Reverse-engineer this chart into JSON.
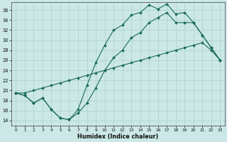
{
  "xlabel": "Humidex (Indice chaleur)",
  "xlim": [
    -0.5,
    23.5
  ],
  "ylim": [
    13,
    37.5
  ],
  "yticks": [
    14,
    16,
    18,
    20,
    22,
    24,
    26,
    28,
    30,
    32,
    34,
    36
  ],
  "xticks": [
    0,
    1,
    2,
    3,
    4,
    5,
    6,
    7,
    8,
    9,
    10,
    11,
    12,
    13,
    14,
    15,
    16,
    17,
    18,
    19,
    20,
    21,
    22,
    23
  ],
  "background_color": "#cbe8e6",
  "grid_color": "#aacfcc",
  "line_color": "#1a6b5a",
  "curve1_x": [
    0,
    1,
    2,
    3,
    4,
    5,
    6,
    7,
    8,
    9,
    10,
    11,
    12,
    13,
    14,
    15,
    16,
    17,
    18,
    19,
    20,
    21,
    22,
    23
  ],
  "curve1_y": [
    19.5,
    19.0,
    17.5,
    18.5,
    16.2,
    14.5,
    14.2,
    16.2,
    21.0,
    25.5,
    29.0,
    32.0,
    33.0,
    35.0,
    35.5,
    37.0,
    36.2,
    37.2,
    35.2,
    35.5,
    33.5,
    31.0,
    28.5,
    26.0
  ],
  "curve2_x": [
    0,
    1,
    2,
    3,
    4,
    5,
    6,
    7,
    8,
    9,
    10,
    11,
    12,
    13,
    14,
    15,
    16,
    17,
    18,
    19,
    20,
    21,
    22,
    23
  ],
  "curve2_y": [
    19.5,
    19.0,
    17.5,
    18.5,
    16.2,
    14.5,
    14.2,
    15.5,
    17.5,
    20.5,
    24.0,
    26.5,
    28.0,
    30.5,
    31.5,
    33.5,
    34.5,
    35.5,
    33.5,
    33.5,
    33.5,
    31.0,
    28.5,
    26.0
  ],
  "curve3_x": [
    0,
    1,
    2,
    3,
    4,
    5,
    6,
    7,
    8,
    9,
    10,
    11,
    12,
    13,
    14,
    15,
    16,
    17,
    18,
    19,
    20,
    21,
    22,
    23
  ],
  "curve3_y": [
    19.5,
    19.5,
    20.0,
    20.5,
    21.0,
    21.5,
    22.0,
    22.5,
    23.0,
    23.5,
    24.0,
    24.5,
    25.0,
    25.5,
    26.0,
    26.5,
    27.0,
    27.5,
    28.0,
    28.5,
    29.0,
    29.5,
    28.0,
    26.0
  ]
}
